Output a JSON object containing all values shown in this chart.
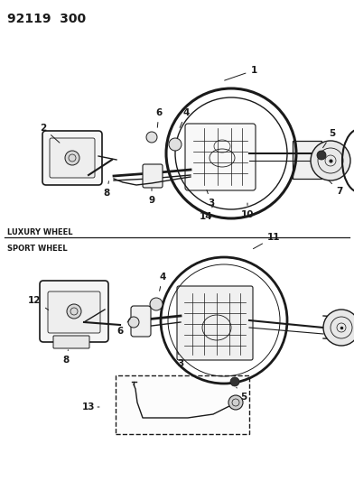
{
  "title": "92119  300",
  "background_color": "#ffffff",
  "line_color": "#1a1a1a",
  "section1_label": "LUXURY WHEEL",
  "section2_label": "SPORT WHEEL",
  "fig_width": 3.92,
  "fig_height": 5.33,
  "dpi": 100
}
